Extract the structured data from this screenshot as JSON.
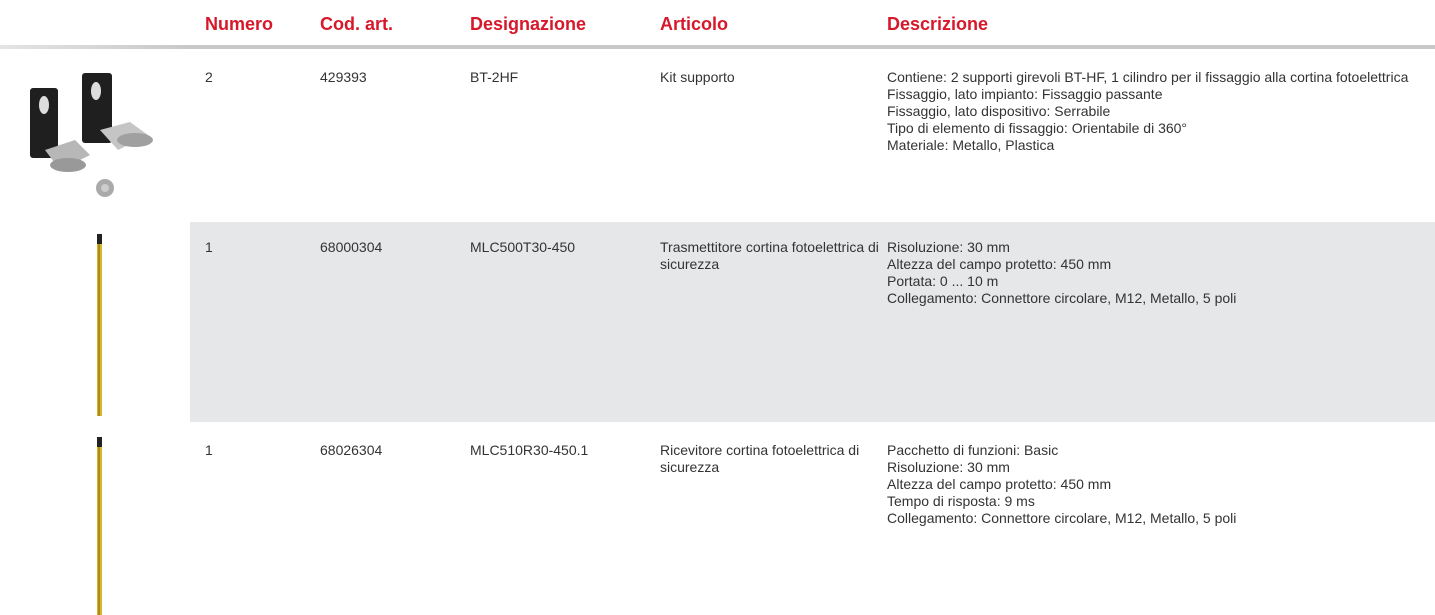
{
  "table": {
    "headers": [
      "Numero",
      "Cod. art.",
      "Designazione",
      "Articolo",
      "Descrizione"
    ],
    "rows": [
      [
        "2",
        "429393",
        "BT-2HF",
        "Kit supporto",
        [
          "Contiene: 2 supporti girevoli BT-HF, 1 cilindro per il fissaggio alla cortina fotoelettrica",
          "Fissaggio, lato impianto: Fissaggio passante",
          "Fissaggio, lato dispositivo: Serrabile",
          "Tipo di elemento di fissaggio: Orientabile di 360°",
          "Materiale: Metallo, Plastica"
        ]
      ],
      [
        "1",
        "68000304",
        "MLC500T30-450",
        "Trasmettitore cortina fotoelettrica di sicurezza",
        [
          "Risoluzione: 30 mm",
          "Altezza del campo protetto: 450 mm",
          "Portata: 0 ... 10 m",
          "Collegamento: Connettore circolare, M12, Metallo, 5 poli"
        ]
      ],
      [
        "1",
        "68026304",
        "MLC510R30-450.1",
        "Ricevitore cortina fotoelettrica di sicurezza",
        [
          "Pacchetto di funzioni: Basic",
          "Risoluzione: 30 mm",
          "Altezza del campo protetto: 450 mm",
          "Tempo di risposta: 9 ms",
          "Collegamento: Connettore circolare, M12, Metallo, 5 poli"
        ]
      ]
    ]
  }
}
